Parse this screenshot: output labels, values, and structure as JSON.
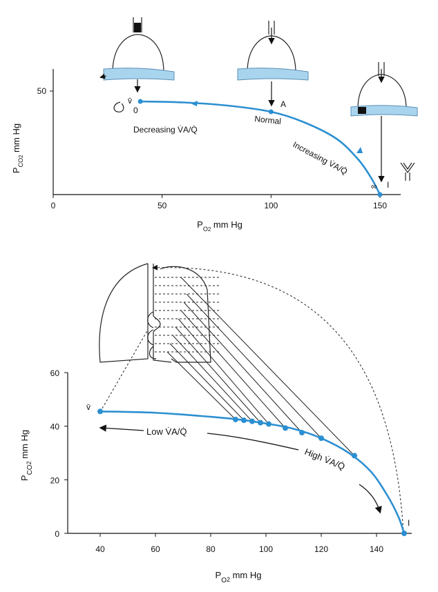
{
  "colors": {
    "curve": "#2b8fd1",
    "airway": "#a9d4ee",
    "axis": "#111111"
  },
  "chart_data": [
    {
      "type": "line",
      "title": "",
      "xlabel": "P_O2 mm Hg",
      "ylabel": "P_CO2 mm Hg",
      "x_ticks": [
        0,
        50,
        100,
        150
      ],
      "y_ticks": [
        50
      ],
      "xlim": [
        0,
        158
      ],
      "ylim": [
        0,
        60
      ],
      "series": [
        {
          "x": [
            40,
            60,
            80,
            100,
            115,
            130,
            140,
            146,
            150
          ],
          "y": [
            45,
            44.5,
            43,
            40,
            35,
            27,
            17,
            8,
            0
          ]
        }
      ],
      "points": [
        {
          "label": "0",
          "sublabel": "v̄",
          "x": 40,
          "y": 45
        },
        {
          "label": "A",
          "x": 100,
          "y": 40
        },
        {
          "label": "I",
          "sublabel": "∞",
          "x": 150,
          "y": 0
        }
      ],
      "annotations": {
        "decreasing": "Decreasing V̇A/Q̇",
        "normal": "Normal",
        "increasing": "Increasing V̇A/Q̇",
        "inf": "∞"
      }
    },
    {
      "type": "line",
      "title": "",
      "xlabel": "P_O2 mm Hg",
      "ylabel": "P_CO2 mm Hg",
      "x_ticks": [
        40,
        60,
        80,
        100,
        120,
        140
      ],
      "y_ticks": [
        0,
        20,
        40,
        60
      ],
      "xlim": [
        30,
        153
      ],
      "ylim": [
        0,
        60
      ],
      "series": [
        {
          "x": [
            40,
            60,
            80,
            90,
            100,
            110,
            120,
            130,
            138,
            144,
            148,
            150
          ],
          "y": [
            45.5,
            45,
            43.5,
            42.5,
            41,
            39,
            35.5,
            30,
            23,
            14,
            6,
            0
          ]
        }
      ],
      "points": [
        {
          "x": 40,
          "y": 45.5,
          "label": "v̄"
        },
        {
          "x": 89,
          "y": 42.5
        },
        {
          "x": 92,
          "y": 42.2
        },
        {
          "x": 95,
          "y": 41.8
        },
        {
          "x": 98,
          "y": 41.3
        },
        {
          "x": 101,
          "y": 40.8
        },
        {
          "x": 107,
          "y": 39.3
        },
        {
          "x": 113,
          "y": 37.6
        },
        {
          "x": 120,
          "y": 35.5
        },
        {
          "x": 132,
          "y": 29
        },
        {
          "x": 150,
          "y": 0,
          "label": "I"
        }
      ],
      "annotations": {
        "low": "Low V̇A/Q̇",
        "high": "High V̇A/Q̇"
      }
    }
  ]
}
